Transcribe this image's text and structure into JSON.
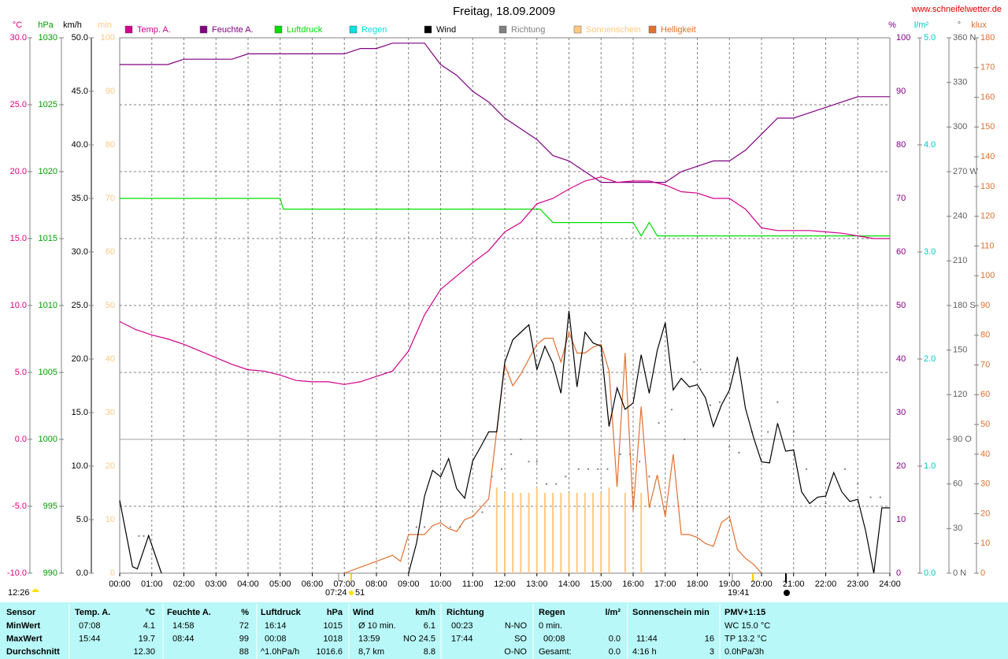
{
  "chart_data": {
    "type": "line",
    "title": "Freitag, 18.09.2009",
    "source": "www.schneifelwetter.de",
    "grid": true,
    "xlim": [
      0,
      24
    ],
    "xticks": [
      {
        "value": 0,
        "label": "00:00"
      },
      {
        "value": 1,
        "label": "01:00"
      },
      {
        "value": 2,
        "label": "02:00"
      },
      {
        "value": 3,
        "label": "03:00"
      },
      {
        "value": 4,
        "label": "04:00"
      },
      {
        "value": 5,
        "label": "05:00"
      },
      {
        "value": 6,
        "label": "06:00"
      },
      {
        "value": 7,
        "label": "07:00"
      },
      {
        "value": 8,
        "label": "08:00"
      },
      {
        "value": 9,
        "label": "09:00"
      },
      {
        "value": 10,
        "label": "10:00"
      },
      {
        "value": 11,
        "label": "11:00"
      },
      {
        "value": 12,
        "label": "12:00"
      },
      {
        "value": 13,
        "label": "13:00"
      },
      {
        "value": 14,
        "label": "14:00"
      },
      {
        "value": 15,
        "label": "15:00"
      },
      {
        "value": 16,
        "label": "16:00"
      },
      {
        "value": 17,
        "label": "17:00"
      },
      {
        "value": 18,
        "label": "18:00"
      },
      {
        "value": 19,
        "label": "19:00"
      },
      {
        "value": 20,
        "label": "20:00"
      },
      {
        "value": 21,
        "label": "21:00"
      },
      {
        "value": 22,
        "label": "22:00"
      },
      {
        "value": 23,
        "label": "23:00"
      },
      {
        "value": 24,
        "label": "24:00"
      }
    ],
    "axes": [
      {
        "label": "°C",
        "color": "#e0007f",
        "ylim": [
          -10,
          30
        ],
        "yticks": [
          {
            "value": -10,
            "label": "-10.0"
          },
          {
            "value": -5,
            "label": "-5.0"
          },
          {
            "value": 0,
            "label": "0.0"
          },
          {
            "value": 5,
            "label": "5.0"
          },
          {
            "value": 10,
            "label": "10.0"
          },
          {
            "value": 15,
            "label": "15.0"
          },
          {
            "value": 20,
            "label": "20.0"
          },
          {
            "value": 25,
            "label": "25.0"
          },
          {
            "value": 30,
            "label": "30.0"
          }
        ]
      },
      {
        "label": "hPa",
        "color": "#00a000",
        "ylim": [
          990,
          1030
        ],
        "yticks": [
          990,
          995,
          1000,
          1005,
          1010,
          1015,
          1020,
          1025,
          1030
        ]
      },
      {
        "label": "km/h",
        "color": "#000000",
        "ylim": [
          0,
          50
        ],
        "yticks": [
          {
            "value": 0,
            "label": "0.0"
          },
          {
            "value": 5,
            "label": "5.0"
          },
          {
            "value": 10,
            "label": "10.0"
          },
          {
            "value": 15,
            "label": "15.0"
          },
          {
            "value": 20,
            "label": "20.0"
          },
          {
            "value": 25,
            "label": "25.0"
          },
          {
            "value": 30,
            "label": "30.0"
          },
          {
            "value": 35,
            "label": "35.0"
          },
          {
            "value": 40,
            "label": "40.0"
          },
          {
            "value": 45,
            "label": "45.0"
          },
          {
            "value": 50,
            "label": "50.0"
          }
        ]
      },
      {
        "label": "min",
        "color": "#ffc880",
        "ylim": [
          0,
          100
        ],
        "yticks": [
          0,
          10,
          20,
          30,
          40,
          50,
          60,
          70,
          80,
          90,
          100
        ]
      },
      {
        "label": "%",
        "color": "#800080",
        "ylim": [
          0,
          100
        ],
        "yticks": [
          0,
          10,
          20,
          30,
          40,
          50,
          60,
          70,
          80,
          90,
          100
        ]
      },
      {
        "label": "l/m²",
        "color": "#00c8c8",
        "ylim": [
          0,
          5
        ],
        "yticks": [
          {
            "value": 0,
            "label": "0.0"
          },
          {
            "value": 1,
            "label": "1.0"
          },
          {
            "value": 2,
            "label": "2.0"
          },
          {
            "value": 3,
            "label": "3.0"
          },
          {
            "value": 4,
            "label": "4.0"
          },
          {
            "value": 5,
            "label": "5.0"
          }
        ]
      },
      {
        "label": "°",
        "color": "#606060",
        "ylim": [
          0,
          360
        ],
        "yticks": [
          {
            "value": 0,
            "label": "0 N"
          },
          30,
          60,
          {
            "value": 90,
            "label": "90 O"
          },
          120,
          150,
          {
            "value": 180,
            "label": "180 S"
          },
          210,
          240,
          {
            "value": 270,
            "label": "270 W"
          },
          300,
          330,
          {
            "value": 360,
            "label": "360 N"
          }
        ]
      },
      {
        "label": "klux",
        "color": "#e07030",
        "ylim": [
          0,
          180
        ],
        "yticks": [
          0,
          10,
          20,
          30,
          40,
          50,
          60,
          70,
          80,
          90,
          100,
          110,
          120,
          130,
          140,
          150,
          160,
          170,
          180
        ]
      }
    ],
    "series": [
      {
        "name": "Temp. A.",
        "color": "#d0008a",
        "type": "line",
        "axis": 0,
        "x": [
          0,
          0.5,
          1,
          1.5,
          2,
          2.5,
          3,
          3.5,
          4,
          4.5,
          5,
          5.5,
          6,
          6.5,
          7,
          7.5,
          8,
          8.5,
          9,
          9.5,
          10,
          10.5,
          11,
          11.5,
          12,
          12.5,
          13,
          13.5,
          14,
          14.5,
          15,
          15.5,
          16,
          16.5,
          17,
          17.5,
          18,
          18.5,
          19,
          19.5,
          20,
          20.5,
          21,
          21.5,
          22,
          22.5,
          23,
          23.5,
          24
        ],
        "values": [
          8.8,
          8.2,
          7.8,
          7.5,
          7.1,
          6.6,
          6.1,
          5.6,
          5.2,
          5.1,
          4.8,
          4.4,
          4.3,
          4.3,
          4.1,
          4.3,
          4.7,
          5.1,
          6.6,
          9.3,
          11.2,
          12.2,
          13.2,
          14.1,
          15.5,
          16.2,
          17.6,
          18.0,
          18.7,
          19.3,
          19.6,
          19.2,
          19.3,
          19.3,
          19.0,
          18.5,
          18.4,
          18.0,
          18.0,
          17.2,
          15.8,
          15.6,
          15.6,
          15.6,
          15.5,
          15.4,
          15.2,
          15.0,
          15.0
        ]
      },
      {
        "name": "Feuchte A.",
        "color": "#800080",
        "type": "line",
        "axis": 4,
        "x": [
          0,
          0.5,
          1,
          1.5,
          2,
          2.5,
          3,
          3.5,
          4,
          4.5,
          5,
          5.5,
          6,
          6.5,
          7,
          7.5,
          8,
          8.5,
          9,
          9.5,
          10,
          10.5,
          11,
          11.5,
          12,
          12.5,
          13,
          13.5,
          14,
          14.5,
          15,
          15.5,
          16,
          16.5,
          17,
          17.5,
          18,
          18.5,
          19,
          19.5,
          20,
          20.5,
          21,
          21.5,
          22,
          22.5,
          23,
          23.5,
          24
        ],
        "values": [
          95,
          95,
          95,
          95,
          96,
          96,
          96,
          96,
          97,
          97,
          97,
          97,
          97,
          97,
          97,
          98,
          98,
          99,
          99,
          99,
          95,
          93,
          90,
          88,
          85,
          83,
          81,
          78,
          77,
          75,
          73,
          73,
          73,
          73,
          73,
          75,
          76,
          77,
          77,
          79,
          82,
          85,
          85,
          86,
          87,
          88,
          89,
          89,
          89
        ]
      },
      {
        "name": "Luftdruck",
        "color": "#00dd00",
        "type": "line",
        "axis": 1,
        "x": [
          0,
          5,
          5.1,
          13.1,
          13.5,
          16,
          16.25,
          16.5,
          16.75,
          24
        ],
        "values": [
          1018,
          1018,
          1017.2,
          1017.2,
          1016.2,
          1016.2,
          1015.2,
          1016.2,
          1015.2,
          1015.2
        ]
      },
      {
        "name": "Regen",
        "color": "#00e0e0",
        "type": "line",
        "axis": 5,
        "x": [],
        "values": []
      },
      {
        "name": "Wind",
        "color": "#000000",
        "type": "line",
        "axis": 2,
        "x": [
          0,
          0.4,
          0.55,
          0.9,
          1.3,
          5,
          9,
          9.25,
          9.5,
          9.75,
          10,
          10.25,
          10.5,
          10.75,
          11,
          11.25,
          11.5,
          11.75,
          12,
          12.25,
          12.5,
          12.75,
          13,
          13.25,
          13.5,
          13.75,
          14,
          14.25,
          14.5,
          14.75,
          15,
          15.25,
          15.5,
          15.75,
          16,
          16.25,
          16.5,
          16.75,
          17,
          17.25,
          17.5,
          17.75,
          18,
          18.25,
          18.5,
          18.75,
          19,
          19.25,
          19.5,
          19.75,
          20,
          20.25,
          20.5,
          20.75,
          21,
          21.25,
          21.5,
          21.75,
          22,
          22.25,
          22.5,
          22.75,
          23,
          23.25,
          23.5,
          23.75,
          24
        ],
        "values": [
          6.8,
          0.6,
          0.4,
          3.5,
          0,
          null,
          0,
          2.8,
          7.2,
          9.6,
          9.0,
          10.7,
          7.9,
          7.0,
          10.5,
          11.8,
          13.2,
          13.2,
          19.7,
          21.8,
          22.5,
          23.2,
          19.0,
          21.2,
          19.6,
          16.8,
          24.5,
          17.4,
          22.5,
          21.5,
          21.2,
          13.7,
          17.3,
          15.3,
          15.9,
          20.4,
          16.8,
          20.8,
          23.4,
          17.1,
          18.2,
          17.4,
          17.6,
          16.4,
          13.7,
          15.7,
          17.1,
          20.2,
          15.4,
          12.7,
          10.4,
          10.3,
          14.0,
          11.4,
          11.5,
          7.6,
          6.5,
          7.1,
          7.2,
          9.4,
          7.6,
          6.7,
          6.9,
          3.9,
          0,
          6.1,
          6.1
        ]
      },
      {
        "name": "Richtung",
        "color": "#808080",
        "type": "scatter",
        "axis": 6,
        "x": [
          0.6,
          0.75,
          0.9,
          9.25,
          9.5,
          10.3,
          10.6,
          11.3,
          11.6,
          11.9,
          12.2,
          12.5,
          12.75,
          13.0,
          13.3,
          13.6,
          13.9,
          14.3,
          14.6,
          14.9,
          15.2,
          15.6,
          15.9,
          16.2,
          16.5,
          16.8,
          17.2,
          17.6,
          17.9,
          18.1,
          18.4,
          18.7,
          19.0,
          19.3,
          19.7,
          20.2,
          20.5,
          21.0,
          21.4,
          22.0,
          22.6,
          23.0,
          23.4,
          23.7
        ],
        "values": [
          25,
          25,
          25,
          31,
          31,
          31,
          31,
          41,
          65,
          70,
          80,
          90,
          75,
          75,
          60,
          60,
          65,
          70,
          70,
          70,
          70,
          80,
          80,
          75,
          65,
          101,
          110,
          90,
          142,
          137,
          113,
          115,
          85,
          81,
          95,
          95,
          115,
          95,
          70,
          47,
          70,
          60,
          51,
          51
        ]
      },
      {
        "name": "Sonnenschein",
        "color": "#ffc880",
        "type": "bar",
        "axis": 3,
        "x": [
          11.75,
          12.0,
          12.25,
          12.5,
          12.75,
          13.0,
          13.25,
          13.5,
          13.75,
          14.0,
          14.25,
          14.5,
          14.75,
          15.0,
          15.25,
          15.75,
          16.25
        ],
        "values": [
          16,
          15,
          15,
          15,
          15,
          16,
          15,
          15,
          15,
          15,
          15,
          15,
          15,
          15,
          16,
          15,
          15
        ]
      },
      {
        "name": "Helligkeit",
        "color": "#e07030",
        "type": "line",
        "axis": 7,
        "x": [
          7,
          7.5,
          8,
          8.5,
          8.75,
          9,
          9.5,
          9.75,
          10,
          10.25,
          10.5,
          10.75,
          11,
          11.25,
          11.5,
          11.75,
          12,
          12.25,
          12.5,
          12.75,
          13,
          13.25,
          13.5,
          13.75,
          14,
          14.25,
          14.5,
          14.75,
          15,
          15.25,
          15.5,
          15.75,
          16,
          16.25,
          16.5,
          16.75,
          17,
          17.25,
          17.5,
          17.75,
          18,
          18.25,
          18.5,
          18.75,
          19,
          19.25,
          19.5,
          19.75,
          20
        ],
        "values": [
          0,
          2,
          4,
          6,
          4,
          13,
          13,
          16,
          17,
          15,
          14,
          18,
          19,
          22,
          25,
          48,
          70,
          63,
          67,
          72,
          77,
          79,
          79,
          71,
          81,
          74,
          74,
          76,
          77,
          68,
          29,
          74,
          21,
          56,
          22,
          33,
          19,
          40,
          13,
          13,
          12,
          10,
          9,
          17,
          19,
          8,
          5,
          3,
          0
        ]
      }
    ],
    "annotations": [
      "12:26",
      "07:24",
      "51",
      "19:41"
    ]
  },
  "table": {
    "header": [
      "Sensor",
      "Temp. A.",
      "°C",
      "Feuchte A.",
      "%",
      "Luftdruck",
      "hPa",
      "Wind",
      "km/h",
      "Richtung",
      "Regen",
      "l/m²",
      "Sonnenschein min",
      "PMV+1:15"
    ],
    "rows": [
      [
        "MinWert",
        "07:08",
        "4.1",
        "14:58",
        "72",
        "16:14",
        "1015",
        "Ø 10 min.",
        "6.1",
        "00:23",
        "N-NO",
        "0 min.",
        "WC 15.0 °C"
      ],
      [
        "MaxWert",
        "15:44",
        "19.7",
        "08:44",
        "99",
        "00:08",
        "1018",
        "13:59",
        "NO 24.5",
        "17:44",
        "SO",
        "00:08",
        "0.0",
        "11:44",
        "16",
        "TP 13.2 °C"
      ],
      [
        "Durchschnitt",
        "12.30",
        "88",
        "^1.0hPa/h",
        "1016.6",
        "8,7 km",
        "8.8",
        "O-NO",
        "Gesamt:",
        "0.0",
        "4:16 h",
        "3",
        "0.0hPa/3h"
      ]
    ]
  }
}
